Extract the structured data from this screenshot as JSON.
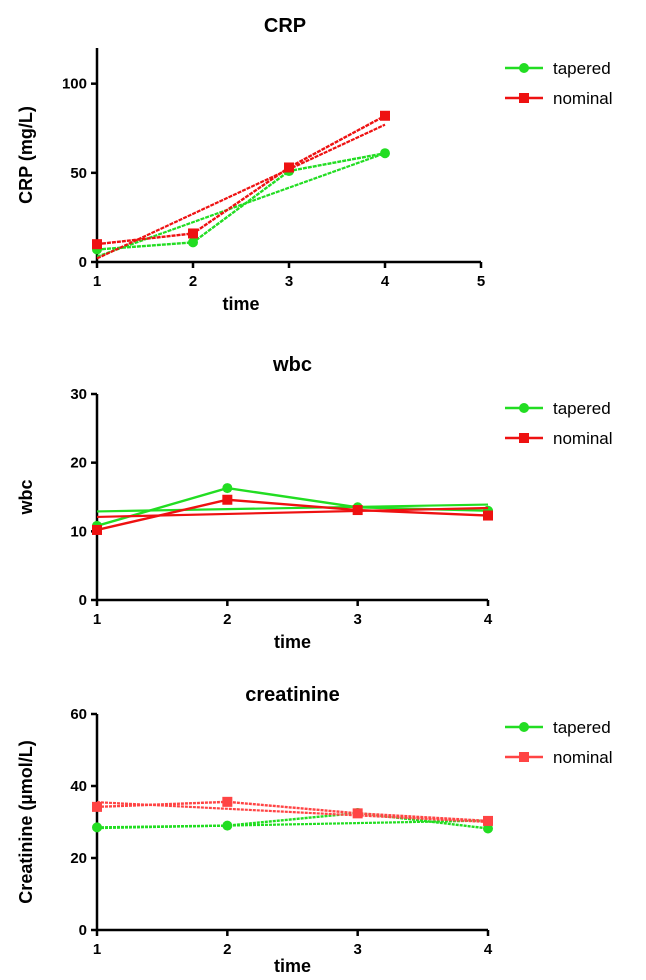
{
  "chart_data": [
    {
      "type": "line",
      "title": "CRP",
      "xlabel": "time",
      "ylabel": "CRP (mg/L)",
      "xlim": [
        1,
        5
      ],
      "ylim": [
        0,
        120
      ],
      "xticks": [
        1,
        2,
        3,
        4,
        5
      ],
      "yticks": [
        0,
        50,
        100
      ],
      "grid": false,
      "legend": "right",
      "series": [
        {
          "name": "tapered",
          "color": "#22dd22",
          "marker": "circle",
          "points": [
            [
              1,
              7
            ],
            [
              2,
              11
            ],
            [
              3,
              51
            ],
            [
              4,
              61
            ]
          ],
          "fit": [
            [
              1,
              3
            ],
            [
              4,
              61
            ]
          ]
        },
        {
          "name": "nominal",
          "color": "#ee1111",
          "marker": "square",
          "points": [
            [
              1,
              10
            ],
            [
              2,
              16
            ],
            [
              3,
              53
            ],
            [
              4,
              82
            ]
          ],
          "fit": [
            [
              1,
              2
            ],
            [
              4,
              77
            ]
          ]
        }
      ]
    },
    {
      "type": "line",
      "title": "wbc",
      "xlabel": "time",
      "ylabel": "wbc",
      "xlim": [
        1,
        4
      ],
      "ylim": [
        0,
        30
      ],
      "xticks": [
        1,
        2,
        3,
        4
      ],
      "yticks": [
        0,
        10,
        20,
        30
      ],
      "grid": false,
      "legend": "right",
      "series": [
        {
          "name": "tapered",
          "color": "#22dd22",
          "marker": "circle",
          "points": [
            [
              1,
              10.8
            ],
            [
              2,
              16.3
            ],
            [
              3,
              13.5
            ],
            [
              4,
              13
            ]
          ],
          "fit": [
            [
              1,
              12.9
            ],
            [
              4,
              13.9
            ]
          ]
        },
        {
          "name": "nominal",
          "color": "#ee1111",
          "marker": "square",
          "points": [
            [
              1,
              10.2
            ],
            [
              2,
              14.6
            ],
            [
              3,
              13.1
            ],
            [
              4,
              12.3
            ]
          ],
          "fit": [
            [
              1,
              12.1
            ],
            [
              4,
              13.4
            ]
          ]
        }
      ]
    },
    {
      "type": "line",
      "title": "creatinine",
      "xlabel": "time",
      "ylabel": "Creatinine (µmol/L)",
      "xlim": [
        1,
        4
      ],
      "ylim": [
        0,
        60
      ],
      "xticks": [
        1,
        2,
        3,
        4
      ],
      "yticks": [
        0,
        20,
        40,
        60
      ],
      "grid": false,
      "legend": "right",
      "series": [
        {
          "name": "tapered",
          "color": "#22dd22",
          "marker": "circle",
          "points": [
            [
              1,
              28.5
            ],
            [
              2,
              29
            ],
            [
              3,
              32.5
            ],
            [
              4,
              28.2
            ]
          ],
          "fit": [
            [
              1,
              28.3
            ],
            [
              4,
              30.4
            ]
          ]
        },
        {
          "name": "nominal",
          "color": "#ff4444",
          "marker": "square",
          "points": [
            [
              1,
              34.2
            ],
            [
              2,
              35.6
            ],
            [
              3,
              32.4
            ],
            [
              4,
              30.3
            ]
          ],
          "fit": [
            [
              1,
              35.5
            ],
            [
              4,
              30
            ]
          ]
        }
      ]
    }
  ]
}
